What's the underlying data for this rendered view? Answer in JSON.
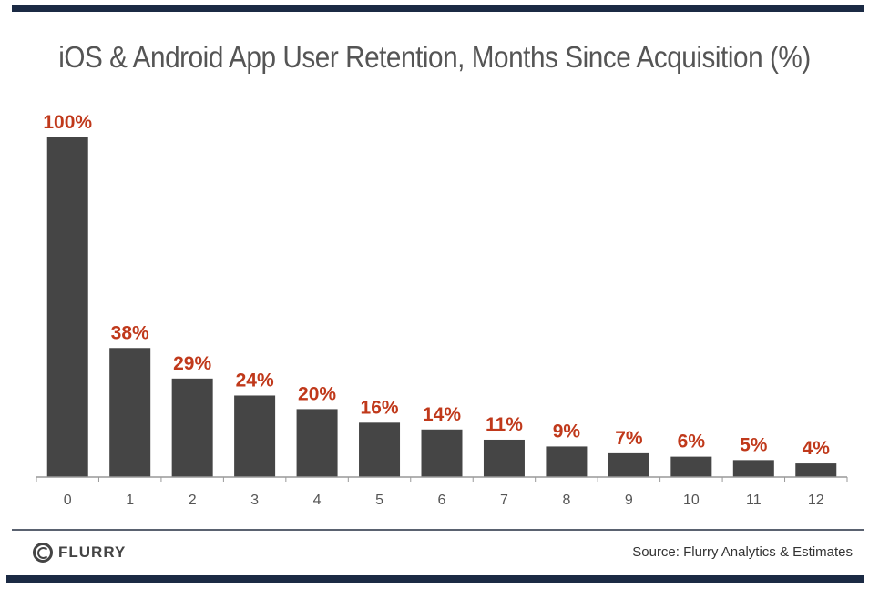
{
  "chart_data": {
    "type": "bar",
    "title": "iOS & Android App User Retention, Months Since Acquisition (%)",
    "categories": [
      "0",
      "1",
      "2",
      "3",
      "4",
      "5",
      "6",
      "7",
      "8",
      "9",
      "10",
      "11",
      "12"
    ],
    "values": [
      100,
      38,
      29,
      24,
      20,
      16,
      14,
      11,
      9,
      7,
      6,
      5,
      4
    ],
    "data_labels": [
      "100%",
      "38%",
      "29%",
      "24%",
      "20%",
      "16%",
      "14%",
      "11%",
      "9%",
      "7%",
      "6%",
      "5%",
      "4%"
    ],
    "xlabel": "",
    "ylabel": "",
    "ylim": [
      0,
      100
    ],
    "grid": false,
    "bar_color": "#454545",
    "label_color": "#c0391b"
  },
  "footer": {
    "logo_text": "FLURRY",
    "source": "Source: Flurry Analytics & Estimates"
  },
  "colors": {
    "bar_accent": "#1b2a44"
  }
}
